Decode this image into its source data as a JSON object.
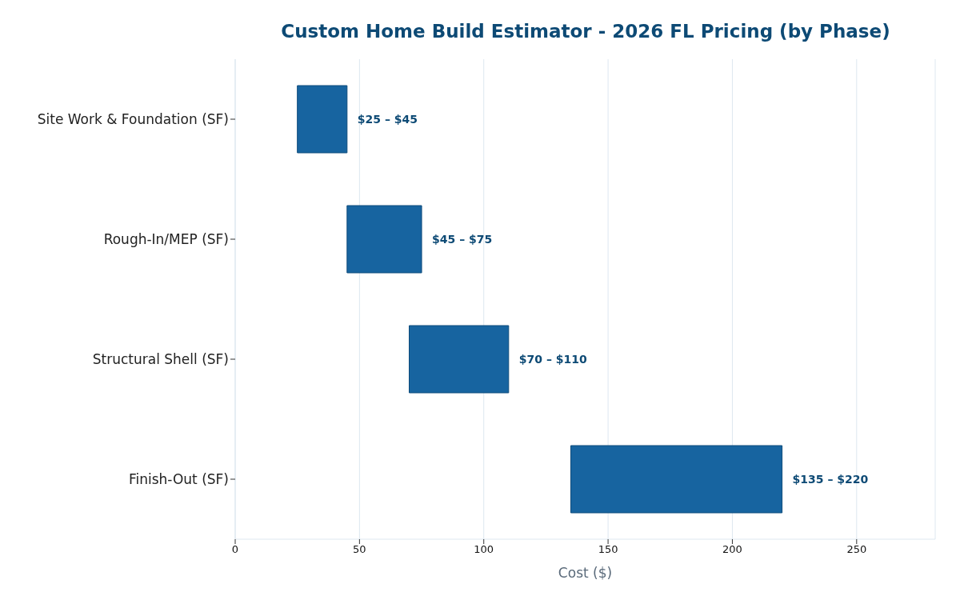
{
  "chart_data": {
    "type": "bar",
    "orientation": "horizontal",
    "title": "Custom Home Build Estimator - 2026 FL Pricing (by Phase)",
    "xlabel": "Cost ($)",
    "categories": [
      "Site Work & Foundation (SF)",
      "Rough-In/MEP (SF)",
      "Structural Shell (SF)",
      "Finish-Out (SF)"
    ],
    "base": [
      25,
      45,
      70,
      135
    ],
    "values": [
      20,
      30,
      40,
      85
    ],
    "annotations": [
      {
        "text": "$25 – $45",
        "x": 45,
        "y": "Site Work & Foundation (SF)"
      },
      {
        "text": "$45 – $75",
        "x": 75,
        "y": "Rough-In/MEP (SF)"
      },
      {
        "text": "$70 – $110",
        "x": 110,
        "y": "Structural Shell (SF)"
      },
      {
        "text": "$135 – $220",
        "x": 220,
        "y": "Finish-Out (SF)"
      }
    ],
    "color": "#1764a0",
    "xlim": [
      0,
      281.6
    ],
    "xticks": [
      0,
      50,
      100,
      150,
      200,
      250
    ],
    "grid": "x"
  }
}
